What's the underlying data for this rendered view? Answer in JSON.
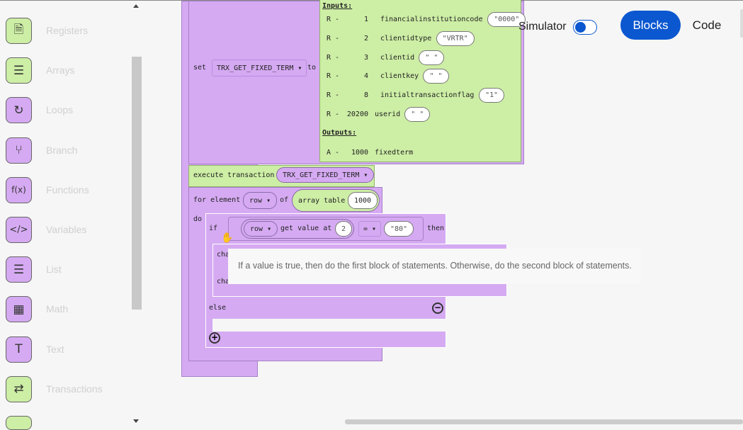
{
  "sidebar": {
    "categories": [
      {
        "label": "Registers",
        "icon": "document-icon",
        "color": "#cdeea5"
      },
      {
        "label": "Arrays",
        "icon": "list-icon",
        "color": "#cdeea5"
      },
      {
        "label": "Loops",
        "icon": "loop-icon",
        "color": "#d5aaf2"
      },
      {
        "label": "Branch",
        "icon": "branch-icon",
        "color": "#d5aaf2"
      },
      {
        "label": "Functions",
        "icon": "function-icon",
        "color": "#d5aaf2"
      },
      {
        "label": "Variables",
        "icon": "code-icon",
        "color": "#d5aaf2"
      },
      {
        "label": "List",
        "icon": "list-icon",
        "color": "#d5aaf2"
      },
      {
        "label": "Math",
        "icon": "calculator-icon",
        "color": "#d5aaf2"
      },
      {
        "label": "Text",
        "icon": "text-icon",
        "color": "#d5aaf2"
      },
      {
        "label": "Transactions",
        "icon": "swap-icon",
        "color": "#cdeea5"
      }
    ]
  },
  "header": {
    "simulator_label": "Simulator",
    "simulator_on": false,
    "blocks_tab": "Blocks",
    "code_tab": "Code",
    "accent": "#0b57d0"
  },
  "blocks": {
    "set_kw": "set",
    "set_var": "TRX_GET_FIXED_TERM",
    "to_kw": "to",
    "inputs_label": "Inputs:",
    "outputs_label": "Outputs:",
    "inputs": [
      {
        "mode": "R -",
        "num": "1",
        "name": "financialinstitutioncode",
        "value": "\"0000\""
      },
      {
        "mode": "R -",
        "num": "2",
        "name": "clientidtype",
        "value": "\"VRTR\""
      },
      {
        "mode": "R -",
        "num": "3",
        "name": "clientid",
        "value": "\" \""
      },
      {
        "mode": "R -",
        "num": "4",
        "name": "clientkey",
        "value": "\" \""
      },
      {
        "mode": "R -",
        "num": "8",
        "name": "initialtransactionflag",
        "value": "\"1\""
      },
      {
        "mode": "R -",
        "num": "20200",
        "name": "userid",
        "value": "\" \""
      }
    ],
    "outputs": [
      {
        "mode": "A -",
        "num": "1000",
        "name": "fixedterm"
      }
    ],
    "execute_kw": "execute transaction",
    "execute_var": "TRX_GET_FIXED_TERM",
    "for_kw": "for element",
    "for_var": "row",
    "of_kw": "of",
    "array_kw": "array table",
    "array_num": "1000",
    "do_kw": "do",
    "if_kw": "if",
    "cond_var": "row",
    "get_kw": "get value at",
    "index": "2",
    "op": "=",
    "compare": "\"80\"",
    "then_kw": "then",
    "change1": "cha",
    "change2": "cha",
    "else_kw": "else"
  },
  "tooltip": "If a value is true, then do the first block of statements. Otherwise, do the second block of statements."
}
